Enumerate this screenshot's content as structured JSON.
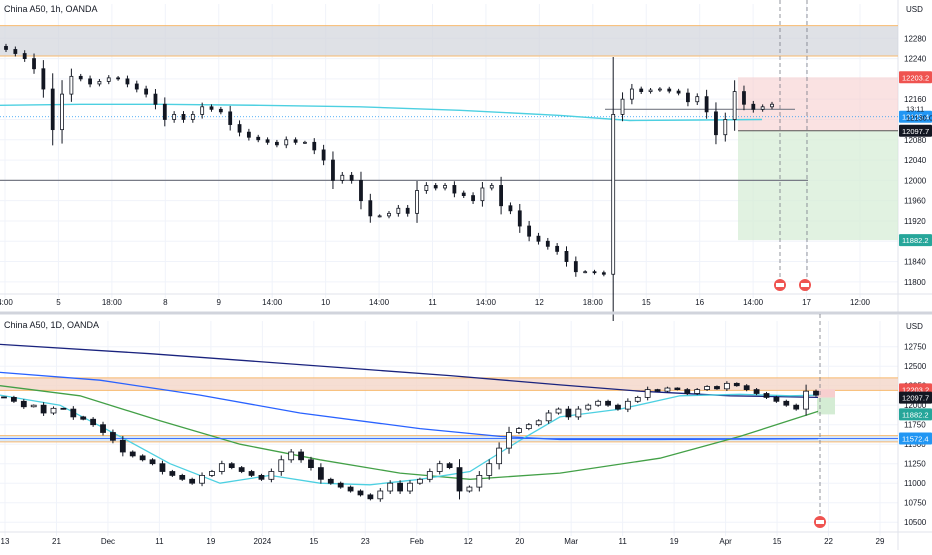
{
  "chart_data": [
    {
      "type": "candlestick",
      "title": "China A50, 1h, OANDA",
      "currency": "USD",
      "timeframe": "1h",
      "x_ticks": [
        "4:00",
        "5",
        "18:00",
        "8",
        "9",
        "14:00",
        "10",
        "14:00",
        "11",
        "14:00",
        "12",
        "18:00",
        "15",
        "16",
        "14:00",
        "17",
        "12:00"
      ],
      "y_ticks": [
        11800,
        11840,
        11880,
        11920,
        11960,
        12000,
        12040,
        12080,
        12120,
        12160,
        12200,
        12240,
        12280
      ],
      "ylim": [
        11780,
        12320
      ],
      "price_labels": [
        {
          "text": "12203.2",
          "value": 12203.2,
          "color": "#ef5350"
        },
        {
          "text": "12125.4",
          "value": 12125.4,
          "color": "#2196f3"
        },
        {
          "text": "12097.7",
          "value": 12097.7,
          "color": "#131722"
        },
        {
          "text": "11882.2",
          "value": 11882.2,
          "color": "#26a69a"
        }
      ],
      "countdown_label": "13:11",
      "countdown_value_label": "12130.0",
      "closes": [
        12258,
        12250,
        12240,
        12220,
        12180,
        12100,
        12170,
        12205,
        12200,
        12190,
        12195,
        12202,
        12200,
        12190,
        12180,
        12170,
        12150,
        12120,
        12130,
        12120,
        12130,
        12145,
        12140,
        12135,
        12110,
        12095,
        12085,
        12080,
        12075,
        12070,
        12080,
        12075,
        12075,
        12060,
        12040,
        12000,
        12010,
        12000,
        11960,
        11930,
        11930,
        11935,
        11945,
        11935,
        11980,
        11990,
        11985,
        11990,
        11975,
        11970,
        11960,
        11985,
        11990,
        11950,
        11940,
        11910,
        11890,
        11880,
        11870,
        11860,
        11840,
        11820,
        11820,
        11818,
        11815,
        12130,
        12160,
        12180,
        12175,
        12178,
        12180,
        12176,
        12172,
        12155,
        12165,
        12135,
        12090,
        12120,
        12175,
        12150,
        12140,
        12145,
        12150
      ],
      "ma_line": "Moving average (cyan)",
      "horizontal_levels": [
        12000,
        12140
      ],
      "position_tool": {
        "entry": 12097.7,
        "stop": 12203.2,
        "target": 11882.2
      }
    },
    {
      "type": "candlestick",
      "title": "China A50, 1D, OANDA",
      "currency": "USD",
      "timeframe": "1D",
      "x_ticks": [
        "13",
        "21",
        "Dec",
        "11",
        "19",
        "2024",
        "15",
        "23",
        "Feb",
        "12",
        "20",
        "Mar",
        "11",
        "19",
        "Apr",
        "15",
        "22",
        "29"
      ],
      "y_ticks": [
        10500,
        10750,
        11000,
        11250,
        11500,
        11750,
        12000,
        12250,
        12500,
        12750
      ],
      "ylim": [
        10400,
        12900
      ],
      "price_labels": [
        {
          "text": "12203.2",
          "value": 12203.2,
          "color": "#ef5350"
        },
        {
          "text": "12097.7",
          "value": 12097.7,
          "color": "#131722"
        },
        {
          "text": "11882.2",
          "value": 11882.2,
          "color": "#26a69a"
        },
        {
          "text": "11572.4",
          "value": 11572.4,
          "color": "#2196f3"
        }
      ],
      "closes": [
        12100,
        12050,
        11980,
        12000,
        11900,
        11960,
        11950,
        11850,
        11820,
        11750,
        11650,
        11550,
        11400,
        11350,
        11300,
        11250,
        11150,
        11100,
        11050,
        11000,
        11100,
        11150,
        11250,
        11200,
        11150,
        11100,
        11050,
        11150,
        11300,
        11400,
        11300,
        11200,
        11050,
        11000,
        10950,
        10900,
        10850,
        10800,
        10900,
        11000,
        10900,
        11000,
        11050,
        11150,
        11250,
        11200,
        10900,
        10950,
        11100,
        11250,
        11450,
        11650,
        11700,
        11750,
        11800,
        11900,
        11950,
        11850,
        11950,
        12000,
        12050,
        12000,
        11950,
        12050,
        12100,
        12200,
        12180,
        12220,
        12200,
        12150,
        12200,
        12240,
        12210,
        12280,
        12250,
        12200,
        12150,
        12100,
        12050,
        12000,
        11950,
        12180,
        12130
      ],
      "ma_lines": [
        "EMA 20 (cyan)",
        "MA 50 (green)",
        "MA 100 (blue)",
        "MA 200 (navy)"
      ],
      "horizontal_levels": [
        11572.4
      ],
      "zones": [
        {
          "from": 12190,
          "to": 12350,
          "kind": "resistance"
        },
        {
          "from": 11530,
          "to": 11610,
          "kind": "support"
        }
      ]
    }
  ]
}
